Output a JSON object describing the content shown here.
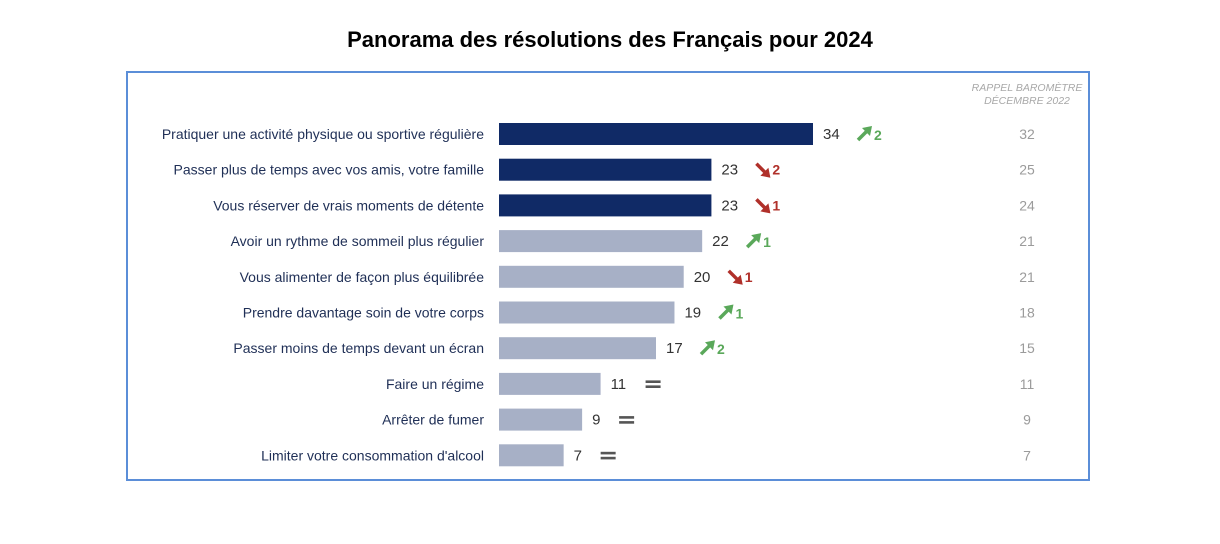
{
  "page_title": "Panorama des résolutions des Français pour 2024",
  "chart_data": {
    "type": "bar",
    "orientation": "horizontal",
    "title": "Panorama des résolutions des Français pour 2024",
    "reference_header": [
      "RAPPEL BAROMÈTRE",
      "DÉCEMBRE 2022"
    ],
    "xlim": [
      0,
      34
    ],
    "grid": false,
    "categories": [
      "Pratiquer une activité physique ou sportive régulière",
      "Passer plus de temps avec vos amis, votre famille",
      "Vous réserver de vrais moments de détente",
      "Avoir un rythme de sommeil plus régulier",
      "Vous alimenter de façon plus équilibrée",
      "Prendre davantage soin de votre corps",
      "Passer moins de temps devant un écran",
      "Faire un régime",
      "Arrêter de fumer",
      "Limiter votre consommation d'alcool"
    ],
    "values": [
      34,
      23,
      23,
      22,
      20,
      19,
      17,
      11,
      9,
      7
    ],
    "evolution": [
      {
        "direction": "up",
        "value": "2"
      },
      {
        "direction": "down",
        "value": "2"
      },
      {
        "direction": "down",
        "value": "1"
      },
      {
        "direction": "up",
        "value": "1"
      },
      {
        "direction": "down",
        "value": "1"
      },
      {
        "direction": "up",
        "value": "1"
      },
      {
        "direction": "up",
        "value": "2"
      },
      {
        "direction": "equal",
        "value": ""
      },
      {
        "direction": "equal",
        "value": ""
      },
      {
        "direction": "equal",
        "value": ""
      }
    ],
    "reference_values": [
      32,
      25,
      24,
      21,
      21,
      18,
      15,
      11,
      9,
      7
    ],
    "highlighted_top": 3,
    "colors": {
      "highlight_bar": "#102a66",
      "bar": "#a7b0c6",
      "up": "#5aa85a",
      "down": "#b0302a",
      "equal": "#555555",
      "label": "#1f2f56",
      "value": "#333333",
      "reference": "#9b9b9b",
      "frame": "#5b8ed8"
    }
  }
}
